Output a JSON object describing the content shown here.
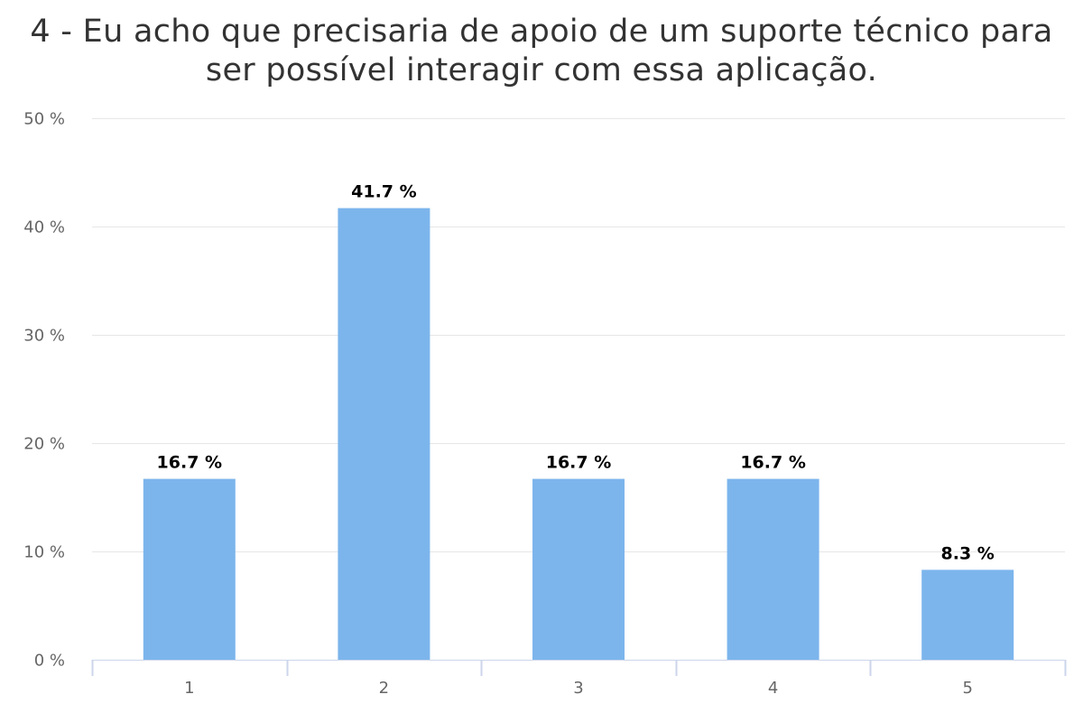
{
  "chart_data": {
    "type": "bar",
    "title_lines": [
      "4 - Eu acho que precisaria de apoio de um suporte técnico para",
      "ser possível interagir com essa aplicação."
    ],
    "categories": [
      "1",
      "2",
      "3",
      "4",
      "5"
    ],
    "values": [
      16.7,
      41.7,
      16.7,
      16.7,
      8.3
    ],
    "data_labels": [
      "16.7 %",
      "41.7 %",
      "16.7 %",
      "16.7 %",
      "8.3 %"
    ],
    "y_ticks": [
      0,
      10,
      20,
      30,
      40,
      50
    ],
    "y_tick_labels": [
      "0 %",
      "10 %",
      "20 %",
      "30 %",
      "40 %",
      "50 %"
    ],
    "ylim": [
      0,
      50
    ],
    "xlabel": "",
    "ylabel": "",
    "grid": true,
    "legend": "none",
    "colors": {
      "bar": "#7cb5ec",
      "grid": "#e6e6e6",
      "axis": "#ccd6eb",
      "tick_text": "#666666",
      "data_label": "#000000",
      "title": "#333333"
    }
  }
}
